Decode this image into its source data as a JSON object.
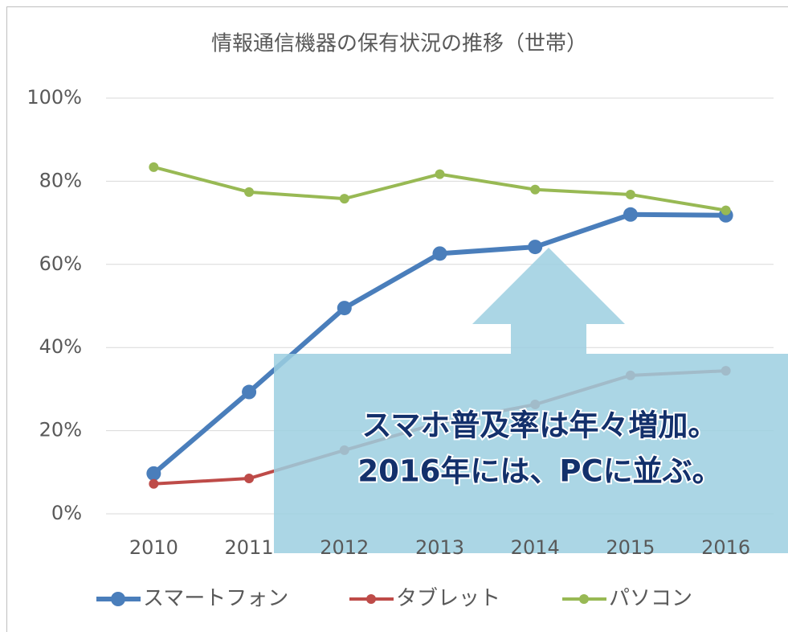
{
  "chart_data": {
    "type": "line",
    "title": "情報通信機器の保有状況の推移（世帯）",
    "categories": [
      "2010",
      "2011",
      "2012",
      "2013",
      "2014",
      "2015",
      "2016"
    ],
    "series": [
      {
        "name": "スマートフォン",
        "color": "#4a7ebb",
        "values": [
          9.7,
          29.3,
          49.5,
          62.6,
          64.2,
          72.0,
          71.8
        ]
      },
      {
        "name": "タブレット",
        "color": "#be4b48",
        "values": [
          7.2,
          8.5,
          15.3,
          21.9,
          26.3,
          33.3,
          34.4
        ]
      },
      {
        "name": "パソコン",
        "color": "#98b954",
        "values": [
          83.4,
          77.4,
          75.8,
          81.7,
          78.0,
          76.8,
          73.0
        ]
      }
    ],
    "ylim": [
      0,
      100
    ],
    "yticks": [
      {
        "value": 0,
        "label": "0%"
      },
      {
        "value": 20,
        "label": "20%"
      },
      {
        "value": 40,
        "label": "40%"
      },
      {
        "value": 60,
        "label": "60%"
      },
      {
        "value": 80,
        "label": "80%"
      },
      {
        "value": 100,
        "label": "100%"
      }
    ],
    "grid": true,
    "legend": "bottom",
    "annotations": [
      "スマホ普及率は年々増加。",
      "2016年には、PCに並ぶ。"
    ]
  }
}
